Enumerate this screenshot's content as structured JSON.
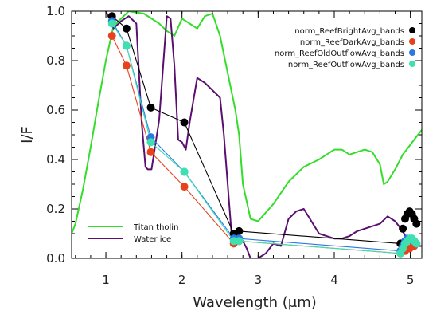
{
  "chart_data": {
    "type": "line",
    "title": "",
    "xlabel": "Wavelength (μm)",
    "ylabel": "I/F",
    "xlim": [
      0.55,
      5.15
    ],
    "ylim": [
      0.0,
      1.0
    ],
    "xticks": [
      1,
      2,
      3,
      4,
      5
    ],
    "xtick_labels": [
      "1",
      "2",
      "3",
      "4",
      "5"
    ],
    "yticks": [
      0.0,
      0.2,
      0.4,
      0.6,
      0.8,
      1.0
    ],
    "ytick_labels": [
      "0.0",
      "0.2",
      "0.4",
      "0.6",
      "0.8",
      "1.0"
    ],
    "grid": false,
    "legend_points_position": "top-right",
    "legend_lines_position": "bottom-left",
    "series": [
      {
        "name": "norm_ReefBrightAvg_bands",
        "kind": "points",
        "color": "#000000",
        "x": [
          1.08,
          1.27,
          1.59,
          2.03,
          2.68,
          2.75,
          4.87,
          4.9,
          4.93,
          4.96,
          4.99,
          5.02,
          5.05,
          5.08
        ],
        "y": [
          0.98,
          0.93,
          0.61,
          0.55,
          0.1,
          0.11,
          0.06,
          0.12,
          0.16,
          0.18,
          0.19,
          0.18,
          0.16,
          0.14
        ]
      },
      {
        "name": "norm_ReefDarkAvg_bands",
        "kind": "points",
        "color": "#e8411e",
        "x": [
          1.08,
          1.27,
          1.59,
          2.03,
          2.68,
          2.75,
          4.87,
          4.93,
          4.99,
          5.05
        ],
        "y": [
          0.9,
          0.78,
          0.43,
          0.29,
          0.06,
          0.07,
          0.02,
          0.03,
          0.04,
          0.05
        ]
      },
      {
        "name": "norm_ReefOldOutflowAvg_bands",
        "kind": "points",
        "color": "#2a78e4",
        "x": [
          1.08,
          1.27,
          1.59,
          2.03,
          2.68,
          2.75,
          4.87,
          4.9,
          4.93,
          4.96,
          4.99,
          5.02,
          5.05,
          5.08
        ],
        "y": [
          0.96,
          0.86,
          0.49,
          0.35,
          0.08,
          0.08,
          0.03,
          0.05,
          0.07,
          0.08,
          0.08,
          0.08,
          0.07,
          0.06
        ]
      },
      {
        "name": "norm_ReefOutflowAvg_bands",
        "kind": "points",
        "color": "#3ee0b0",
        "x": [
          1.08,
          1.27,
          1.59,
          2.03,
          2.68,
          2.75,
          4.87,
          4.9,
          4.93,
          4.96,
          4.99,
          5.02,
          5.05,
          5.08
        ],
        "y": [
          0.95,
          0.86,
          0.47,
          0.35,
          0.07,
          0.07,
          0.02,
          0.04,
          0.06,
          0.07,
          0.08,
          0.08,
          0.07,
          0.06
        ]
      },
      {
        "name": "Titan tholin",
        "kind": "line",
        "color": "#33dd2a",
        "x": [
          0.55,
          0.6,
          0.7,
          0.8,
          0.9,
          1.0,
          1.1,
          1.3,
          1.5,
          1.7,
          1.8,
          1.9,
          2.0,
          2.1,
          2.2,
          2.3,
          2.4,
          2.5,
          2.6,
          2.7,
          2.75,
          2.8,
          2.9,
          3.0,
          3.2,
          3.4,
          3.6,
          3.8,
          3.9,
          4.0,
          4.1,
          4.2,
          4.3,
          4.4,
          4.5,
          4.6,
          4.65,
          4.7,
          4.8,
          4.9,
          5.0,
          5.1,
          5.15
        ],
        "y": [
          0.1,
          0.14,
          0.28,
          0.45,
          0.63,
          0.8,
          0.94,
          1.0,
          0.99,
          0.95,
          0.92,
          0.9,
          0.97,
          0.95,
          0.93,
          0.98,
          0.99,
          0.9,
          0.75,
          0.6,
          0.5,
          0.3,
          0.16,
          0.15,
          0.22,
          0.31,
          0.37,
          0.4,
          0.42,
          0.44,
          0.44,
          0.42,
          0.43,
          0.44,
          0.43,
          0.38,
          0.3,
          0.31,
          0.36,
          0.42,
          0.46,
          0.5,
          0.52
        ]
      },
      {
        "name": "Water ice",
        "kind": "line",
        "color": "#5a0f6e",
        "x": [
          1.0,
          1.03,
          1.07,
          1.1,
          1.2,
          1.3,
          1.4,
          1.47,
          1.52,
          1.55,
          1.6,
          1.7,
          1.8,
          1.85,
          1.9,
          1.95,
          2.0,
          2.05,
          2.1,
          2.2,
          2.3,
          2.4,
          2.5,
          2.55,
          2.6,
          2.65,
          2.7,
          2.75,
          2.8,
          2.85,
          2.9,
          2.95,
          3.0,
          3.05,
          3.1,
          3.15,
          3.2,
          3.3,
          3.4,
          3.5,
          3.6,
          3.7,
          3.8,
          3.9,
          4.0,
          4.1,
          4.2,
          4.3,
          4.4,
          4.5,
          4.6,
          4.7,
          4.8,
          4.9,
          4.95,
          5.0,
          5.05,
          5.1,
          5.15
        ],
        "y": [
          1.0,
          0.98,
          0.96,
          0.93,
          0.96,
          0.98,
          0.95,
          0.55,
          0.37,
          0.36,
          0.36,
          0.56,
          0.98,
          0.97,
          0.78,
          0.48,
          0.47,
          0.44,
          0.55,
          0.73,
          0.71,
          0.68,
          0.65,
          0.5,
          0.3,
          0.1,
          0.08,
          0.08,
          0.07,
          0.04,
          0.0,
          0.0,
          0.0,
          0.01,
          0.02,
          0.04,
          0.06,
          0.05,
          0.16,
          0.19,
          0.2,
          0.15,
          0.1,
          0.09,
          0.08,
          0.08,
          0.09,
          0.11,
          0.12,
          0.13,
          0.14,
          0.17,
          0.15,
          0.11,
          0.08,
          0.06,
          0.05,
          0.05,
          0.05
        ]
      },
      {
        "name": "",
        "kind": "connector",
        "color": "#000000",
        "x": [
          1.08,
          1.27,
          1.59,
          2.03,
          2.68,
          2.75,
          4.87
        ],
        "y": [
          0.98,
          0.93,
          0.61,
          0.55,
          0.1,
          0.11,
          0.06
        ]
      },
      {
        "name": "",
        "kind": "connector",
        "color": "#e8411e",
        "x": [
          1.08,
          1.27,
          1.59,
          2.03,
          2.68,
          2.75,
          4.87
        ],
        "y": [
          0.9,
          0.78,
          0.43,
          0.29,
          0.06,
          0.07,
          0.02
        ]
      },
      {
        "name": "",
        "kind": "connector",
        "color": "#2a78e4",
        "x": [
          1.08,
          1.27,
          1.59,
          2.03,
          2.68,
          2.75,
          4.87
        ],
        "y": [
          0.96,
          0.86,
          0.49,
          0.35,
          0.08,
          0.08,
          0.03
        ]
      },
      {
        "name": "",
        "kind": "connector",
        "color": "#3ee0b0",
        "x": [
          1.08,
          1.27,
          1.59,
          2.03,
          2.68,
          2.75,
          4.87
        ],
        "y": [
          0.95,
          0.86,
          0.47,
          0.35,
          0.07,
          0.07,
          0.02
        ]
      }
    ]
  }
}
